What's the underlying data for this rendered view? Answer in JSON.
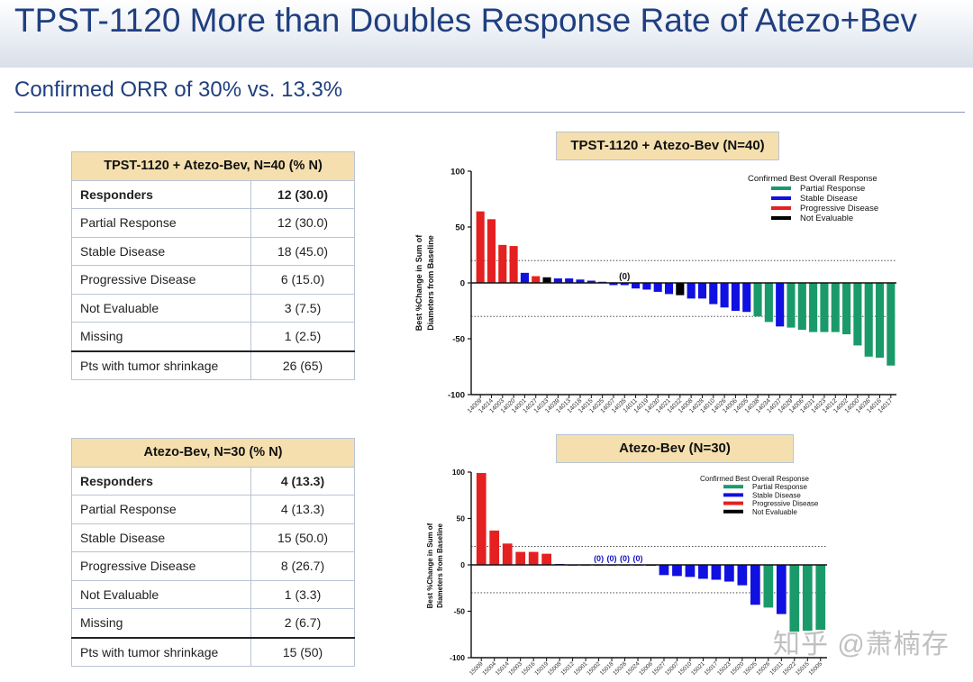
{
  "title": "TPST-1120 More than Doubles Response Rate of Atezo+Bev",
  "subtitle": "Confirmed ORR of 30% vs. 13.3%",
  "watermark": "知乎 @萧楠存",
  "tables": [
    {
      "header": "TPST-1120 + Atezo-Bev, N=40 (% N)",
      "rows": [
        {
          "label": "Responders",
          "value": "12 (30.0)",
          "bold": true
        },
        {
          "label": "Partial Response",
          "value": "12 (30.0)"
        },
        {
          "label": "Stable Disease",
          "value": "18 (45.0)"
        },
        {
          "label": "Progressive Disease",
          "value": "6 (15.0)"
        },
        {
          "label": "Not Evaluable",
          "value": "3 (7.5)"
        },
        {
          "label": "Missing",
          "value": "1 (2.5)"
        },
        {
          "label": "Pts with tumor shrinkage",
          "value": "26 (65)",
          "separator": true
        }
      ]
    },
    {
      "header": "Atezo-Bev, N=30 (% N)",
      "rows": [
        {
          "label": "Responders",
          "value": "4 (13.3)",
          "bold": true
        },
        {
          "label": "Partial Response",
          "value": "4 (13.3)"
        },
        {
          "label": "Stable Disease",
          "value": "15 (50.0)"
        },
        {
          "label": "Progressive Disease",
          "value": "8 (26.7)"
        },
        {
          "label": "Not Evaluable",
          "value": "1 (3.3)"
        },
        {
          "label": "Missing",
          "value": "2 (6.7)"
        },
        {
          "label": "Pts with tumor shrinkage",
          "value": "15 (50)",
          "separator": true
        }
      ]
    }
  ],
  "colors": {
    "PR": "#1a9a6a",
    "SD": "#1010e0",
    "PD": "#e52020",
    "NE": "#000000",
    "title_text": "#1f3f7f",
    "table_header": "#f5dfae"
  },
  "chart_data": [
    {
      "type": "bar",
      "title": "TPST-1120 + Atezo-Bev (N=40)",
      "ylabel": "Best %Change in Sum of Diameters from Baseline",
      "ylim": [
        -100,
        100
      ],
      "yticks": [
        100,
        50,
        0,
        -50,
        -100
      ],
      "reference_lines": [
        20,
        -30
      ],
      "legend_title": "Confirmed Best Overall Response",
      "legend": [
        {
          "label": "Partial Response",
          "code": "PR"
        },
        {
          "label": "Stable Disease",
          "code": "SD"
        },
        {
          "label": "Progressive Disease",
          "code": "PD"
        },
        {
          "label": "Not Evaluable",
          "code": "NE"
        }
      ],
      "annotations": [
        {
          "label": "(0)",
          "bar_index": 13
        }
      ],
      "categories": [
        "14009",
        "14014",
        "14003",
        "14020",
        "14001",
        "14027",
        "14033",
        "14039",
        "14013",
        "14018",
        "14015",
        "14025",
        "14007",
        "14035",
        "14011",
        "14019",
        "14030",
        "14021",
        "14032",
        "14008",
        "14028",
        "14010",
        "14026",
        "14006",
        "14005",
        "14038",
        "14034",
        "14037",
        "14029",
        "14006",
        "14031",
        "14023",
        "14012",
        "14002",
        "14000",
        "14036",
        "14016",
        "14017"
      ],
      "values": [
        64,
        57,
        34,
        33,
        9,
        6,
        5,
        4,
        4,
        3,
        2,
        1,
        -2,
        -2,
        -5,
        -6,
        -8,
        -10,
        -11,
        -14,
        -14,
        -19,
        -22,
        -25,
        -26,
        -30,
        -35,
        -39,
        -40,
        -42,
        -44,
        -44,
        -44,
        -46,
        -56,
        -66,
        -67,
        -74
      ],
      "response": [
        "PD",
        "PD",
        "PD",
        "PD",
        "SD",
        "PD",
        "NE",
        "SD",
        "SD",
        "SD",
        "SD",
        "SD",
        "SD",
        "SD",
        "SD",
        "SD",
        "SD",
        "SD",
        "NE",
        "SD",
        "SD",
        "SD",
        "SD",
        "SD",
        "SD",
        "PR",
        "PR",
        "SD",
        "PR",
        "PR",
        "PR",
        "PR",
        "PR",
        "PR",
        "PR",
        "PR",
        "PR",
        "PR"
      ]
    },
    {
      "type": "bar",
      "title": "Atezo-Bev (N=30)",
      "ylabel": "Best %Change in Sum of Diameters from Baseline",
      "ylim": [
        -100,
        100
      ],
      "yticks": [
        100,
        50,
        0,
        -50,
        -100
      ],
      "reference_lines": [
        20,
        -30
      ],
      "legend_title": "Confirmed Best Overall Response",
      "legend": [
        {
          "label": "Partial Response",
          "code": "PR"
        },
        {
          "label": "Stable Disease",
          "code": "SD"
        },
        {
          "label": "Progressive Disease",
          "code": "PD"
        },
        {
          "label": "Not Evaluable",
          "code": "NE"
        }
      ],
      "annotations": [
        {
          "label": "(0)",
          "bar_index": 9
        },
        {
          "label": "(0)",
          "bar_index": 10
        },
        {
          "label": "(0)",
          "bar_index": 11
        },
        {
          "label": "(0)",
          "bar_index": 12
        }
      ],
      "categories": [
        "15009",
        "15004",
        "15014",
        "15003",
        "15016",
        "15019",
        "15008",
        "15012",
        "15001",
        "15002",
        "15018",
        "15028",
        "15024",
        "15006",
        "15027",
        "15007",
        "15010",
        "15021",
        "15017",
        "15023",
        "15020",
        "15025",
        "15026",
        "15011",
        "15022",
        "15015",
        "15005"
      ],
      "values": [
        99,
        37,
        23,
        14,
        14,
        12,
        1,
        0,
        0,
        0,
        0,
        0,
        0,
        -1,
        -11,
        -12,
        -13,
        -15,
        -16,
        -18,
        -22,
        -43,
        -46,
        -53,
        -72,
        -71,
        -70
      ],
      "response": [
        "PD",
        "PD",
        "PD",
        "PD",
        "PD",
        "PD",
        "SD",
        "SD",
        "SD",
        "SD",
        "SD",
        "SD",
        "SD",
        "SD",
        "SD",
        "SD",
        "SD",
        "SD",
        "SD",
        "SD",
        "SD",
        "SD",
        "PR",
        "SD",
        "PR",
        "PR",
        "PR"
      ]
    }
  ]
}
